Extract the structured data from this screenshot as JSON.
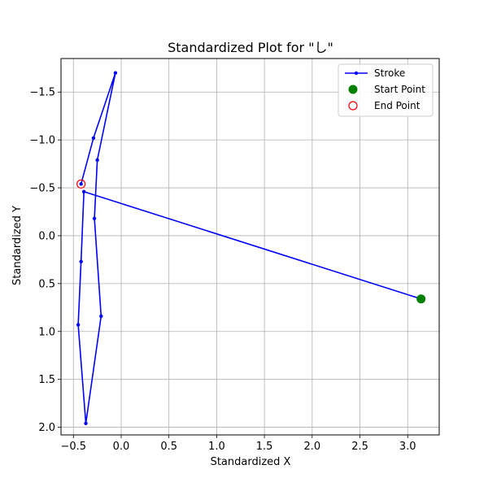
{
  "chart_data": {
    "type": "line",
    "title": "Standardized Plot for \"し\"",
    "xlabel": "Standardized X",
    "ylabel": "Standardized Y",
    "xlim": [
      -0.63,
      3.33
    ],
    "ylim": [
      2.08,
      -1.85
    ],
    "y_inverted": true,
    "grid": true,
    "legend_position": "top-right",
    "xticks": [
      -0.5,
      0.0,
      0.5,
      1.0,
      1.5,
      2.0,
      2.5,
      3.0
    ],
    "xtick_labels": [
      "−0.5",
      "0.0",
      "0.5",
      "1.0",
      "1.5",
      "2.0",
      "2.5",
      "3.0"
    ],
    "yticks": [
      -1.5,
      -1.0,
      -0.5,
      0.0,
      0.5,
      1.0,
      1.5,
      2.0
    ],
    "ytick_labels": [
      "−1.5",
      "−1.0",
      "−0.5",
      "0.0",
      "0.5",
      "1.0",
      "1.5",
      "2.0"
    ],
    "series": [
      {
        "name": "Stroke",
        "color": "#0000ff",
        "marker": "dot",
        "points": [
          {
            "x": 3.14,
            "y": 0.66
          },
          {
            "x": -0.39,
            "y": -0.46
          },
          {
            "x": -0.42,
            "y": 0.27
          },
          {
            "x": -0.45,
            "y": 0.93
          },
          {
            "x": -0.37,
            "y": 1.96
          },
          {
            "x": -0.21,
            "y": 0.84
          },
          {
            "x": -0.28,
            "y": -0.18
          },
          {
            "x": -0.25,
            "y": -0.79
          },
          {
            "x": -0.06,
            "y": -1.7
          },
          {
            "x": -0.29,
            "y": -1.02
          },
          {
            "x": -0.42,
            "y": -0.54
          }
        ]
      }
    ],
    "start_point": {
      "name": "Start Point",
      "x": 3.14,
      "y": 0.66,
      "color": "#008000"
    },
    "end_point": {
      "name": "End Point",
      "x": -0.42,
      "y": -0.54,
      "color": "#ff0000"
    }
  }
}
